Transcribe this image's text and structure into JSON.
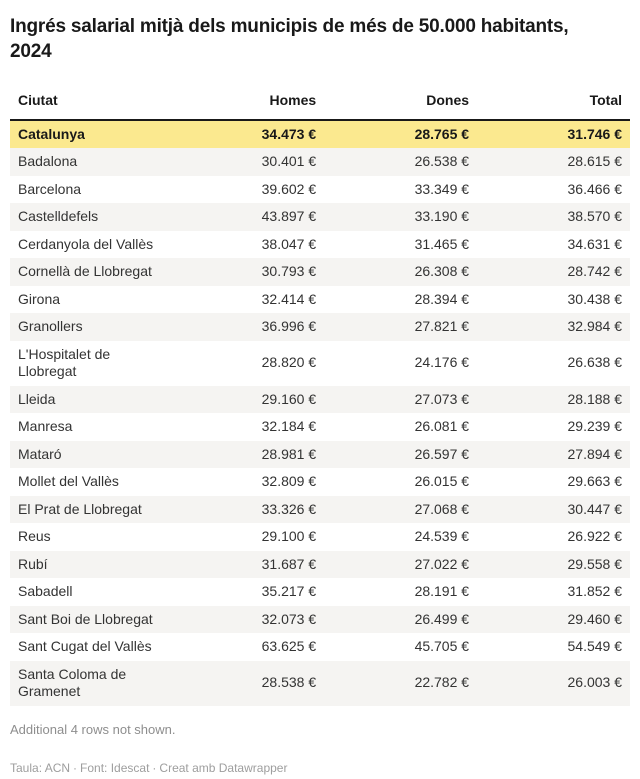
{
  "title": "Ingrés salarial mitjà dels municipis de més de 50.000 habitants, 2024",
  "table": {
    "columns": [
      "Ciutat",
      "Homes",
      "Dones",
      "Total"
    ],
    "rows": [
      {
        "city": "Catalunya",
        "homes": "34.473 €",
        "dones": "28.765 €",
        "total": "31.746 €",
        "highlight": true
      },
      {
        "city": "Badalona",
        "homes": "30.401 €",
        "dones": "26.538 €",
        "total": "28.615 €",
        "highlight": false
      },
      {
        "city": "Barcelona",
        "homes": "39.602 €",
        "dones": "33.349 €",
        "total": "36.466 €",
        "highlight": false
      },
      {
        "city": "Castelldefels",
        "homes": "43.897 €",
        "dones": "33.190 €",
        "total": "38.570 €",
        "highlight": false
      },
      {
        "city": "Cerdanyola del Vallès",
        "homes": "38.047 €",
        "dones": "31.465 €",
        "total": "34.631 €",
        "highlight": false
      },
      {
        "city": "Cornellà de Llobregat",
        "homes": "30.793 €",
        "dones": "26.308 €",
        "total": "28.742 €",
        "highlight": false
      },
      {
        "city": "Girona",
        "homes": "32.414 €",
        "dones": "28.394 €",
        "total": "30.438 €",
        "highlight": false
      },
      {
        "city": "Granollers",
        "homes": "36.996 €",
        "dones": "27.821 €",
        "total": "32.984 €",
        "highlight": false
      },
      {
        "city": "L'Hospitalet de Llobregat",
        "homes": "28.820 €",
        "dones": "24.176 €",
        "total": "26.638 €",
        "highlight": false
      },
      {
        "city": "Lleida",
        "homes": "29.160 €",
        "dones": "27.073 €",
        "total": "28.188 €",
        "highlight": false
      },
      {
        "city": "Manresa",
        "homes": "32.184 €",
        "dones": "26.081 €",
        "total": "29.239 €",
        "highlight": false
      },
      {
        "city": "Mataró",
        "homes": "28.981 €",
        "dones": "26.597 €",
        "total": "27.894 €",
        "highlight": false
      },
      {
        "city": "Mollet del Vallès",
        "homes": "32.809 €",
        "dones": "26.015 €",
        "total": "29.663 €",
        "highlight": false
      },
      {
        "city": "El Prat de Llobregat",
        "homes": "33.326 €",
        "dones": "27.068 €",
        "total": "30.447 €",
        "highlight": false
      },
      {
        "city": "Reus",
        "homes": "29.100 €",
        "dones": "24.539 €",
        "total": "26.922 €",
        "highlight": false
      },
      {
        "city": "Rubí",
        "homes": "31.687 €",
        "dones": "27.022 €",
        "total": "29.558 €",
        "highlight": false
      },
      {
        "city": "Sabadell",
        "homes": "35.217 €",
        "dones": "28.191 €",
        "total": "31.852 €",
        "highlight": false
      },
      {
        "city": "Sant Boi de Llobregat",
        "homes": "32.073 €",
        "dones": "26.499 €",
        "total": "29.460 €",
        "highlight": false
      },
      {
        "city": "Sant Cugat del Vallès",
        "homes": "63.625 €",
        "dones": "45.705 €",
        "total": "54.549 €",
        "highlight": false
      },
      {
        "city": "Santa Coloma de Gramenet",
        "homes": "28.538 €",
        "dones": "22.782 €",
        "total": "26.003 €",
        "highlight": false
      }
    ]
  },
  "note": "Additional 4 rows not shown.",
  "footer": {
    "table_credit": "Taula: ACN",
    "separator": "·",
    "source_credit": "Font: Idescat",
    "created_with": "Creat amb Datawrapper"
  },
  "colors": {
    "highlight_row_bg": "#fbe98f",
    "stripe_row_bg": "#f5f4f2",
    "header_border": "#191919",
    "body_text": "#333333",
    "note_text": "#8e8e8e",
    "footer_text": "#9e9e9e"
  },
  "chart_data": {
    "type": "table",
    "title": "Ingrés salarial mitjà dels municipis de més de 50.000 habitants, 2024",
    "columns": [
      "Ciutat",
      "Homes",
      "Dones",
      "Total"
    ],
    "units": "€ (EUR, annual mean salary income)",
    "highlighted_row": "Catalunya",
    "rows": [
      [
        "Catalunya",
        34473,
        28765,
        31746
      ],
      [
        "Badalona",
        30401,
        26538,
        28615
      ],
      [
        "Barcelona",
        39602,
        33349,
        36466
      ],
      [
        "Castelldefels",
        43897,
        33190,
        38570
      ],
      [
        "Cerdanyola del Vallès",
        38047,
        31465,
        34631
      ],
      [
        "Cornellà de Llobregat",
        30793,
        26308,
        28742
      ],
      [
        "Girona",
        32414,
        28394,
        30438
      ],
      [
        "Granollers",
        36996,
        27821,
        32984
      ],
      [
        "L'Hospitalet de Llobregat",
        28820,
        24176,
        26638
      ],
      [
        "Lleida",
        29160,
        27073,
        28188
      ],
      [
        "Manresa",
        32184,
        26081,
        29239
      ],
      [
        "Mataró",
        28981,
        26597,
        27894
      ],
      [
        "Mollet del Vallès",
        32809,
        26015,
        29663
      ],
      [
        "El Prat de Llobregat",
        33326,
        27068,
        30447
      ],
      [
        "Reus",
        29100,
        24539,
        26922
      ],
      [
        "Rubí",
        31687,
        27022,
        29558
      ],
      [
        "Sabadell",
        35217,
        28191,
        31852
      ],
      [
        "Sant Boi de Llobregat",
        32073,
        26499,
        29460
      ],
      [
        "Sant Cugat del Vallès",
        63625,
        45705,
        54549
      ],
      [
        "Santa Coloma de Gramenet",
        28538,
        22782,
        26003
      ]
    ],
    "note": "Additional 4 rows not shown.",
    "credits": "Taula: ACN · Font: Idescat · Creat amb Datawrapper"
  }
}
